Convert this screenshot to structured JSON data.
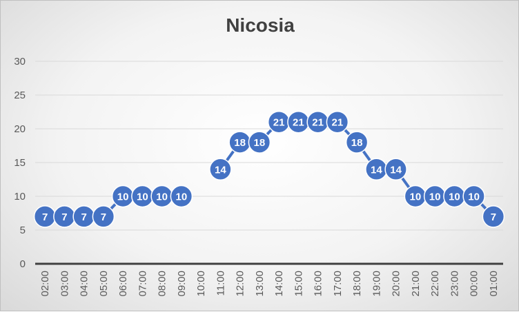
{
  "chart_data": {
    "type": "line",
    "title": "Nicosia",
    "xlabel": "",
    "ylabel": "",
    "ylim": [
      0,
      30
    ],
    "yticks": [
      0,
      5,
      10,
      15,
      20,
      25,
      30
    ],
    "grid": true,
    "legend": "none",
    "categories": [
      "02:00",
      "03:00",
      "04:00",
      "05:00",
      "06:00",
      "07:00",
      "08:00",
      "09:00",
      "10:00",
      "11:00",
      "12:00",
      "13:00",
      "14:00",
      "15:00",
      "16:00",
      "17:00",
      "18:00",
      "19:00",
      "20:00",
      "21:00",
      "22:00",
      "23:00",
      "00:00",
      "01:00"
    ],
    "series": [
      {
        "values": [
          7,
          7,
          7,
          7,
          10,
          10,
          10,
          10,
          null,
          14,
          18,
          18,
          21,
          21,
          21,
          21,
          18,
          14,
          14,
          10,
          10,
          10,
          10,
          7
        ],
        "color": "#4472c4"
      }
    ]
  }
}
